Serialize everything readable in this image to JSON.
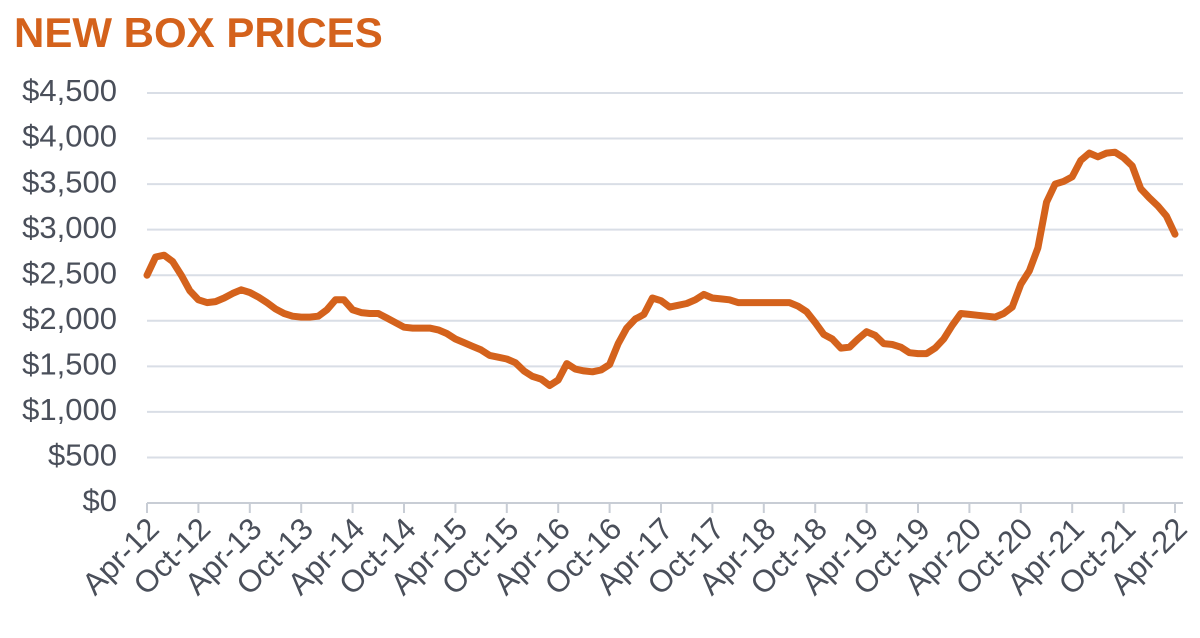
{
  "chart_data": {
    "type": "line",
    "title": "NEW BOX PRICES",
    "categories": [
      "Apr-12",
      null,
      null,
      null,
      null,
      null,
      "Oct-12",
      null,
      null,
      null,
      null,
      null,
      "Apr-13",
      null,
      null,
      null,
      null,
      null,
      "Oct-13",
      null,
      null,
      null,
      null,
      null,
      "Apr-14",
      null,
      null,
      null,
      null,
      null,
      "Oct-14",
      null,
      null,
      null,
      null,
      null,
      "Apr-15",
      null,
      null,
      null,
      null,
      null,
      "Oct-15",
      null,
      null,
      null,
      null,
      null,
      "Apr-16",
      null,
      null,
      null,
      null,
      null,
      "Oct-16",
      null,
      null,
      null,
      null,
      null,
      "Apr-17",
      null,
      null,
      null,
      null,
      null,
      "Oct-17",
      null,
      null,
      null,
      null,
      null,
      "Apr-18",
      null,
      null,
      null,
      null,
      null,
      "Oct-18",
      null,
      null,
      null,
      null,
      null,
      "Apr-19",
      null,
      null,
      null,
      null,
      null,
      "Oct-19",
      null,
      null,
      null,
      null,
      null,
      "Apr-20",
      null,
      null,
      null,
      null,
      null,
      "Oct-20",
      null,
      null,
      null,
      null,
      null,
      "Apr-21",
      null,
      null,
      null,
      null,
      null,
      "Oct-21",
      null,
      null,
      null,
      null,
      null,
      "Apr-22"
    ],
    "series": [
      {
        "color": "#d4621c",
        "values": [
          2500,
          2700,
          2720,
          2650,
          2500,
          2330,
          2230,
          2200,
          2210,
          2250,
          2300,
          2340,
          2310,
          2260,
          2200,
          2130,
          2080,
          2050,
          2040,
          2040,
          2050,
          2120,
          2230,
          2230,
          2120,
          2090,
          2080,
          2080,
          2030,
          1980,
          1930,
          1920,
          1920,
          1920,
          1900,
          1860,
          1800,
          1760,
          1720,
          1680,
          1620,
          1600,
          1580,
          1540,
          1450,
          1390,
          1360,
          1290,
          1350,
          1530,
          1470,
          1450,
          1440,
          1460,
          1520,
          1750,
          1920,
          2020,
          2070,
          2250,
          2220,
          2150,
          2170,
          2190,
          2230,
          2290,
          2250,
          2240,
          2230,
          2200,
          2200,
          2200,
          2200,
          2200,
          2200,
          2200,
          2160,
          2100,
          1980,
          1850,
          1800,
          1700,
          1710,
          1800,
          1880,
          1840,
          1750,
          1740,
          1710,
          1650,
          1640,
          1640,
          1700,
          1800,
          1950,
          2080,
          2070,
          2060,
          2050,
          2040,
          2080,
          2150,
          2400,
          2550,
          2800,
          3300,
          3500,
          3530,
          3580,
          3760,
          3840,
          3800,
          3840,
          3850,
          3790,
          3700,
          3450,
          3350,
          3260,
          3150,
          2950
        ]
      }
    ],
    "ylim": [
      0,
      4500
    ],
    "yticks": [
      {
        "value": 0,
        "label": "$0"
      },
      {
        "value": 500,
        "label": "$500"
      },
      {
        "value": 1000,
        "label": "$1,000"
      },
      {
        "value": 1500,
        "label": "$1,500"
      },
      {
        "value": 2000,
        "label": "$2,000"
      },
      {
        "value": 2500,
        "label": "$2,500"
      },
      {
        "value": 3000,
        "label": "$3,000"
      },
      {
        "value": 3500,
        "label": "$3,500"
      },
      {
        "value": 4000,
        "label": "$4,000"
      },
      {
        "value": 4500,
        "label": "$4,500"
      }
    ],
    "grid": true
  }
}
